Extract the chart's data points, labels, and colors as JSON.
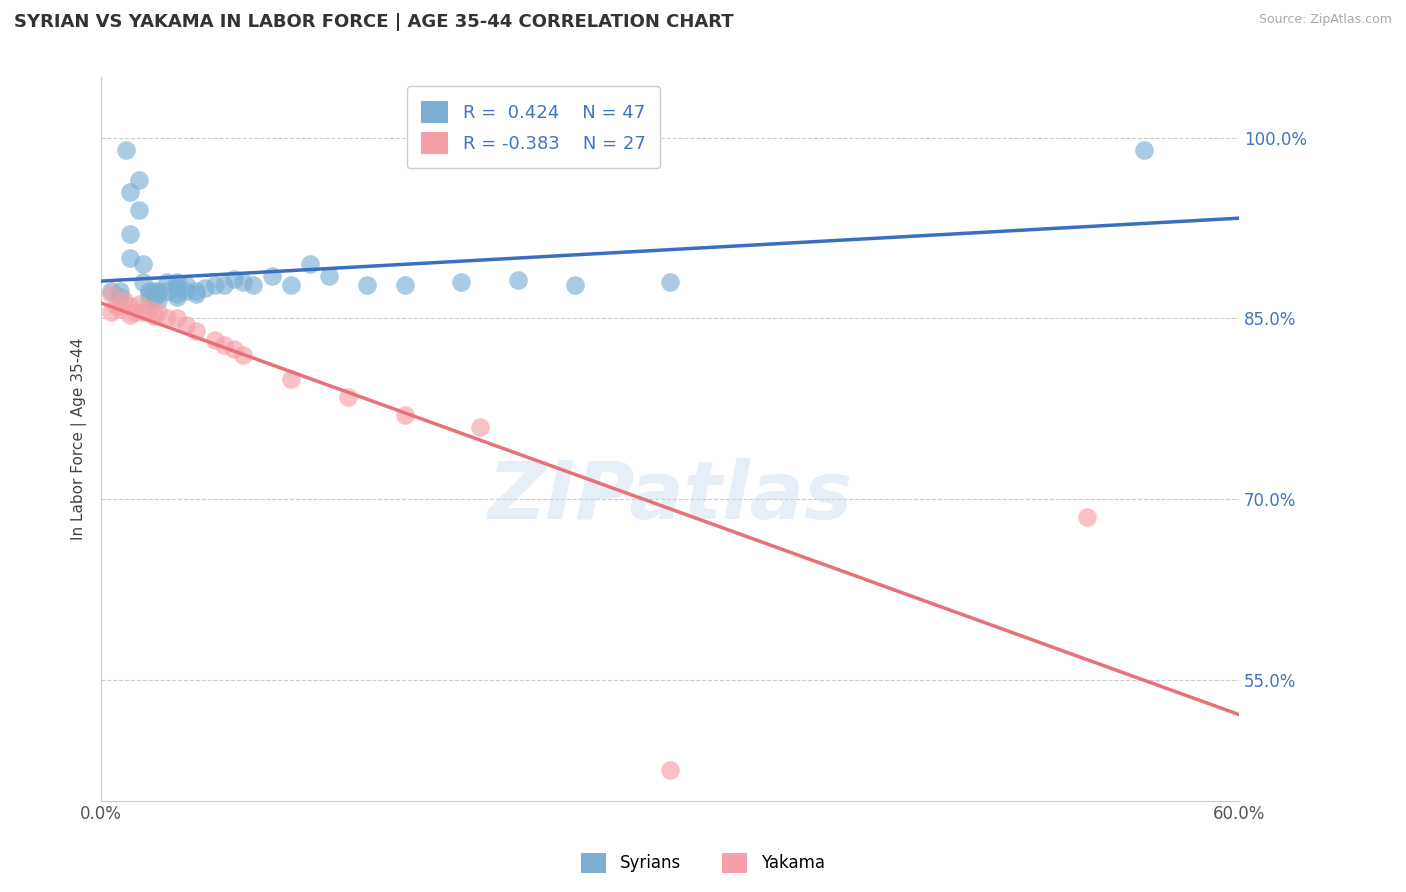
{
  "title": "SYRIAN VS YAKAMA IN LABOR FORCE | AGE 35-44 CORRELATION CHART",
  "source_text": "Source: ZipAtlas.com",
  "ylabel": "In Labor Force | Age 35-44",
  "xlim": [
    0.0,
    0.6
  ],
  "ylim": [
    0.45,
    1.05
  ],
  "xtick_vals": [
    0.0,
    0.1,
    0.2,
    0.3,
    0.4,
    0.5,
    0.6
  ],
  "xtick_labels": [
    "0.0%",
    "",
    "",
    "",
    "",
    "",
    "60.0%"
  ],
  "ytick_right": [
    0.55,
    0.7,
    0.85,
    1.0
  ],
  "ytick_right_labels": [
    "55.0%",
    "70.0%",
    "85.0%",
    "100.0%"
  ],
  "grid_color": "#cccccc",
  "background_color": "#ffffff",
  "legend_R1": "0.424",
  "legend_N1": "47",
  "legend_R2": "-0.383",
  "legend_N2": "27",
  "syrian_color": "#7bafd4",
  "yakama_color": "#f4a0a8",
  "syrian_line_color": "#3a6fbf",
  "yakama_line_color": "#e8707a",
  "watermark": "ZIPatlas",
  "syrian_x": [
    0.005,
    0.01,
    0.01,
    0.013,
    0.015,
    0.015,
    0.015,
    0.02,
    0.02,
    0.022,
    0.022,
    0.025,
    0.025,
    0.025,
    0.028,
    0.028,
    0.03,
    0.03,
    0.03,
    0.035,
    0.035,
    0.04,
    0.04,
    0.04,
    0.04,
    0.04,
    0.045,
    0.045,
    0.05,
    0.05,
    0.055,
    0.06,
    0.065,
    0.07,
    0.075,
    0.08,
    0.09,
    0.1,
    0.11,
    0.12,
    0.14,
    0.16,
    0.19,
    0.22,
    0.25,
    0.3,
    0.55
  ],
  "syrian_y": [
    0.873,
    0.873,
    0.868,
    0.99,
    0.955,
    0.92,
    0.9,
    0.965,
    0.94,
    0.895,
    0.88,
    0.873,
    0.87,
    0.865,
    0.873,
    0.868,
    0.873,
    0.87,
    0.865,
    0.88,
    0.873,
    0.88,
    0.875,
    0.87,
    0.875,
    0.868,
    0.878,
    0.873,
    0.873,
    0.87,
    0.875,
    0.878,
    0.878,
    0.883,
    0.88,
    0.878,
    0.885,
    0.878,
    0.895,
    0.885,
    0.878,
    0.878,
    0.88,
    0.882,
    0.878,
    0.88,
    0.99
  ],
  "yakama_x": [
    0.005,
    0.005,
    0.008,
    0.01,
    0.012,
    0.015,
    0.015,
    0.018,
    0.02,
    0.022,
    0.025,
    0.028,
    0.03,
    0.035,
    0.04,
    0.045,
    0.05,
    0.06,
    0.065,
    0.07,
    0.075,
    0.1,
    0.13,
    0.16,
    0.2,
    0.52,
    0.3
  ],
  "yakama_y": [
    0.87,
    0.855,
    0.86,
    0.858,
    0.865,
    0.86,
    0.853,
    0.855,
    0.862,
    0.855,
    0.858,
    0.852,
    0.855,
    0.85,
    0.85,
    0.845,
    0.84,
    0.832,
    0.828,
    0.825,
    0.82,
    0.8,
    0.785,
    0.77,
    0.76,
    0.685,
    0.475
  ]
}
